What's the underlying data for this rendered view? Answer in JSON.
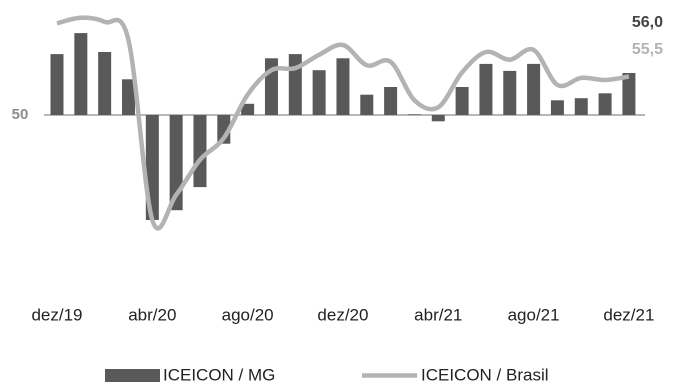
{
  "chart_data": {
    "type": "bar_line",
    "categories": [
      "dez/19",
      null,
      null,
      null,
      "abr/20",
      null,
      null,
      null,
      "ago/20",
      null,
      null,
      null,
      "dez/20",
      null,
      null,
      null,
      "abr/21",
      null,
      null,
      null,
      "ago/21",
      null,
      null,
      null,
      "dez/21"
    ],
    "series": [
      {
        "name": "ICEICON / MG",
        "type": "bar",
        "color": "#595959",
        "values": [
          58.7,
          61.7,
          59.0,
          55.1,
          35.0,
          36.4,
          39.7,
          45.9,
          51.6,
          58.1,
          58.7,
          56.4,
          58.1,
          52.9,
          54.0,
          50.1,
          49.1,
          54.0,
          57.3,
          56.3,
          57.3,
          52.1,
          52.4,
          53.1,
          56.0
        ],
        "value_labels": [
          null,
          null,
          null,
          null,
          null,
          null,
          null,
          null,
          null,
          null,
          null,
          null,
          null,
          null,
          null,
          null,
          null,
          null,
          null,
          null,
          null,
          null,
          null,
          null,
          "56,0"
        ]
      },
      {
        "name": "ICEICON / Brasil",
        "type": "line",
        "color": "#b3b3b3",
        "values": [
          63.1,
          63.9,
          63.3,
          60.7,
          35.0,
          38.6,
          43.6,
          46.7,
          52.9,
          56.4,
          56.7,
          58.6,
          60.0,
          57.1,
          57.6,
          52.1,
          51.1,
          56.1,
          59.0,
          57.9,
          59.3,
          54.3,
          55.3,
          55.0,
          55.5
        ],
        "value_labels": [
          null,
          null,
          null,
          null,
          null,
          null,
          null,
          null,
          null,
          null,
          null,
          null,
          null,
          null,
          null,
          null,
          null,
          null,
          null,
          null,
          null,
          null,
          null,
          null,
          "55,5"
        ]
      }
    ],
    "ylim": [
      32,
      65
    ],
    "yticks": [
      50
    ],
    "legend": "bottom"
  }
}
